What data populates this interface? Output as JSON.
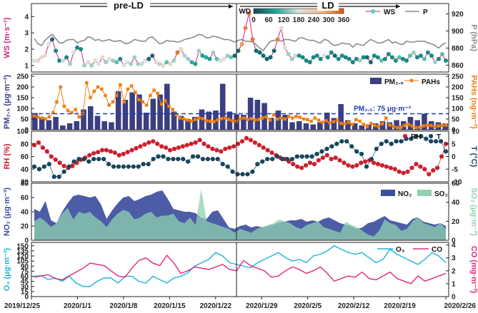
{
  "title": "",
  "phases": {
    "pre": "pre-LD",
    "ld": "LD"
  },
  "colors": {
    "ws": "#d0257a",
    "p": "#8c8c8c",
    "pm": "#3b3f80",
    "pahs": "#f07f12",
    "rh": "#cc1f2e",
    "t": "#17465e",
    "no2": "#3d4ea0",
    "so2": "#8fd1b0",
    "o3": "#1fb3dc",
    "co": "#e0287d",
    "threshold": "#1a3fb5"
  },
  "chart_data": [
    {
      "type": "line",
      "panel": "ws-p",
      "ylabel_left": "WS (m·s⁻¹)",
      "ylabel_right": "P (hPa)",
      "left_ticks": [
        "1",
        "2",
        "3",
        "4"
      ],
      "right_ticks": [
        "860",
        "880",
        "900",
        "920"
      ],
      "ylim_left": [
        0.6,
        4.8
      ],
      "ylim_right": [
        852,
        932
      ],
      "wd_colorbar": {
        "label": "WD",
        "ticks": [
          "0",
          "60",
          "120",
          "180",
          "240",
          "300",
          "360"
        ]
      },
      "series": [
        {
          "name": "WS",
          "axis": "left",
          "values": [
            1.3,
            1.3,
            1.5,
            1.6,
            2.3,
            2.6,
            1.9,
            1.3,
            1.3,
            1.5,
            1.1,
            1.8,
            2.1,
            2.0,
            1.0,
            1.2,
            1.0,
            1.3,
            1.1,
            1.5,
            1.2,
            1.4,
            1.3,
            1.2,
            1.4,
            1.0,
            1.2,
            1.1,
            1.5,
            1.1,
            1.1,
            1.3,
            1.4,
            1.6,
            1.2,
            1.1,
            1.0,
            1.2,
            1.1,
            1.3,
            1.8,
            2.0,
            1.6,
            1.4,
            1.2,
            1.1,
            1.9,
            1.6,
            1.5,
            1.4,
            1.8,
            1.4,
            1.3,
            1.4,
            1.6,
            1.5,
            1.6,
            1.9,
            2.3,
            3.3,
            4.2,
            2.6,
            1.9,
            1.8,
            1.6,
            1.4,
            1.5,
            1.9,
            2.6,
            3.3,
            2.1,
            1.7,
            1.4,
            1.6,
            1.6,
            1.5,
            1.3,
            1.2,
            1.5,
            1.6,
            1.4,
            1.6,
            1.5,
            1.8,
            1.6,
            1.4,
            1.6,
            1.5,
            1.4,
            1.2,
            1.4,
            1.3,
            1.5,
            1.5,
            1.2,
            1.6,
            1.5,
            1.3,
            1.4,
            1.7,
            1.5,
            1.3,
            1.5,
            1.4,
            1.3,
            1.6,
            1.8,
            1.5,
            1.6,
            1.4,
            1.8,
            1.6,
            1.2,
            1.4,
            1.7,
            1.3
          ]
        },
        {
          "name": "P",
          "axis": "right",
          "values": [
            891,
            885,
            883,
            889,
            893,
            896,
            891,
            886,
            886,
            889,
            890,
            890,
            886,
            888,
            889,
            893,
            892,
            889,
            890,
            888,
            889,
            890,
            888,
            888,
            889,
            886,
            885,
            887,
            890,
            889,
            888,
            888,
            892,
            893,
            889,
            885,
            886,
            889,
            888,
            888,
            887,
            888,
            890,
            891,
            892,
            894,
            896,
            895,
            892,
            892,
            894,
            893,
            892,
            890,
            890,
            889,
            887,
            889,
            890,
            888,
            888,
            887,
            884,
            880,
            877,
            883,
            888,
            889,
            889,
            888,
            890,
            890,
            889,
            888,
            892,
            892,
            890,
            889,
            889,
            887,
            886,
            890,
            889,
            885,
            883,
            884,
            886,
            885,
            885,
            881,
            885,
            884,
            883,
            887,
            890,
            888,
            886,
            886,
            888,
            890,
            886,
            887,
            885,
            884,
            888,
            887,
            887,
            888,
            888,
            888,
            886,
            885,
            883,
            880,
            884,
            886
          ]
        }
      ],
      "wd_hue_index": [
        180,
        200,
        200,
        200,
        180,
        30,
        60,
        60,
        170,
        60,
        150,
        180,
        60,
        60,
        150,
        180,
        150,
        190,
        180,
        200,
        150,
        180,
        150,
        120,
        60,
        180,
        180,
        150,
        150,
        150,
        170,
        180,
        30,
        30,
        200,
        160,
        200,
        120,
        200,
        150,
        330,
        200,
        160,
        150,
        100,
        80,
        150,
        80,
        90,
        80,
        150,
        120,
        200,
        180,
        150,
        130,
        30,
        30,
        300,
        320,
        330,
        330,
        30,
        30,
        30,
        30,
        30,
        30,
        320,
        200,
        180,
        150,
        150,
        170,
        60,
        60,
        60,
        60,
        60,
        60,
        60,
        180,
        60,
        60,
        30,
        60,
        60,
        60,
        60,
        60,
        60,
        150,
        60,
        30,
        30,
        60,
        60,
        120,
        60,
        60,
        60,
        60,
        120,
        60,
        60,
        120,
        150,
        60,
        60,
        120,
        60,
        60,
        150,
        60,
        120,
        60
      ]
    },
    {
      "type": "bar",
      "panel": "pm-pahs",
      "ylabel_left": "PM₂.₅ (μg·m⁻³)",
      "ylabel_right": "PAHs (ng·m⁻³)",
      "left_ticks": [
        "0",
        "50",
        "100",
        "150",
        "200",
        "250"
      ],
      "right_ticks": [
        "0",
        "50",
        "100",
        "150",
        "200",
        "250"
      ],
      "ylim_left": [
        0,
        260
      ],
      "ylim_right": [
        0,
        260
      ],
      "threshold": {
        "value": 75,
        "label": "PM₂.₅: 75 μg·m⁻³"
      },
      "series": [
        {
          "name": "PM₂.₅",
          "axis": "left",
          "values": [
            78,
            58,
            45,
            60,
            20,
            30,
            40,
            95,
            110,
            65,
            40,
            35,
            180,
            140,
            175,
            165,
            80,
            145,
            165,
            215,
            85,
            65,
            50,
            60,
            95,
            85,
            90,
            215,
            85,
            72,
            70,
            150,
            140,
            125,
            55,
            90,
            70,
            35,
            40,
            30,
            25,
            35,
            80,
            55,
            120,
            45,
            30,
            20,
            25,
            30,
            40,
            35,
            45,
            40,
            60,
            45,
            75,
            40,
            35,
            30
          ]
        },
        {
          "name": "PAHs",
          "axis": "right",
          "values": [
            65,
            60,
            55,
            50,
            60,
            80,
            130,
            200,
            110,
            90,
            80,
            95,
            60,
            75,
            220,
            150,
            180,
            200,
            190,
            160,
            115,
            130,
            160,
            210,
            130,
            190,
            205,
            175,
            140,
            130,
            115,
            160,
            185,
            170,
            120,
            135,
            110,
            95,
            70,
            55,
            50,
            45,
            40,
            48,
            55,
            52,
            42,
            40,
            38,
            45,
            52,
            55,
            48,
            42,
            40,
            50,
            55,
            48,
            52,
            45,
            48,
            55,
            60,
            45,
            70,
            50,
            55,
            50,
            62,
            55,
            62,
            58,
            50,
            48,
            40,
            55,
            45,
            35,
            42,
            32,
            38,
            45,
            30,
            28,
            35,
            25,
            48,
            40,
            25,
            15,
            30,
            20,
            15,
            28,
            55,
            22,
            16,
            10,
            12,
            20,
            25,
            18,
            10,
            12,
            18,
            22,
            20,
            15,
            18,
            20,
            22
          ]
        }
      ]
    },
    {
      "type": "scatter",
      "panel": "rh-t",
      "ylabel_left": "RH (%)",
      "ylabel_right": "T (°C)",
      "left_ticks": [
        "20",
        "40",
        "60",
        "80",
        "100"
      ],
      "right_ticks": [
        "-10",
        "-5",
        "0",
        "5",
        "10"
      ],
      "ylim_left": [
        20,
        100
      ],
      "ylim_right": [
        -10,
        10
      ],
      "series": [
        {
          "name": "RH",
          "axis": "left",
          "values": [
            78,
            82,
            74,
            68,
            60,
            55,
            50,
            45,
            42,
            45,
            50,
            55,
            58,
            62,
            65,
            67,
            70,
            70,
            68,
            66,
            62,
            64,
            67,
            70,
            73,
            76,
            79,
            82,
            84,
            80,
            76,
            74,
            70,
            72,
            74,
            76,
            78,
            80,
            82,
            86,
            80,
            76,
            72,
            70,
            68,
            72,
            74,
            76,
            80,
            84,
            89,
            86,
            82,
            78,
            74,
            70,
            66,
            62,
            58,
            56,
            52,
            48,
            44,
            42,
            46,
            50,
            48,
            54,
            58,
            62,
            56,
            58,
            54,
            50,
            46,
            44,
            46,
            50,
            52,
            54,
            50,
            48,
            46,
            44,
            42,
            40,
            36,
            34,
            36,
            42,
            48,
            44,
            40,
            32,
            38,
            42,
            60,
            80
          ]
        },
        {
          "name": "T",
          "axis": "right",
          "values": [
            -4,
            -5,
            -4,
            -3,
            -8,
            -8,
            -6,
            -4,
            -2,
            -1,
            -1,
            -2,
            -1,
            -1,
            -1,
            -3,
            -4,
            -4,
            -4,
            -4,
            -4,
            -4,
            -3,
            -3,
            -1,
            0,
            0,
            -1,
            -1,
            -1,
            -1,
            -2,
            0,
            0,
            -1,
            -1,
            -1,
            -1,
            -3,
            -4,
            -6,
            -7,
            -7,
            -7,
            -6,
            -3,
            -2,
            -1,
            -1,
            0,
            -1,
            -1,
            -1,
            0,
            0,
            0,
            0,
            1,
            2,
            3,
            4,
            5,
            6,
            6,
            4,
            2,
            1,
            -4,
            -1,
            3,
            5,
            6,
            5,
            6,
            6,
            7,
            7,
            8,
            8,
            7,
            6,
            6,
            6,
            2
          ]
        }
      ]
    },
    {
      "type": "area",
      "panel": "no2-so2",
      "ylabel_left": "NO₂ (μg·m⁻³)",
      "ylabel_right": "SO₂ (μg·m⁻³)",
      "left_ticks": [
        "0",
        "20",
        "40",
        "60",
        "80"
      ],
      "right_ticks": [
        "0",
        "20",
        "40",
        "60"
      ],
      "ylim_left": [
        0,
        80
      ],
      "ylim_right": [
        0,
        60
      ],
      "series": [
        {
          "name": "NO₂",
          "axis": "left",
          "values": [
            44,
            40,
            55,
            28,
            24,
            40,
            52,
            62,
            64,
            62,
            60,
            62,
            50,
            30,
            42,
            52,
            60,
            62,
            55,
            58,
            62,
            64,
            68,
            70,
            58,
            44,
            42,
            40,
            40,
            38,
            32,
            30,
            40,
            42,
            30,
            18,
            16,
            20,
            22,
            18,
            20,
            18,
            20,
            22,
            25,
            26,
            28,
            28,
            30,
            26,
            28,
            26,
            30,
            32,
            28,
            24,
            22,
            20,
            16,
            18,
            24,
            26,
            30,
            34,
            28,
            26,
            24,
            22,
            30,
            32,
            26,
            24,
            22,
            24,
            20
          ]
        },
        {
          "name": "SO₂",
          "axis": "right",
          "values": [
            20,
            24,
            20,
            14,
            18,
            28,
            34,
            22,
            30,
            28,
            30,
            24,
            20,
            14,
            22,
            28,
            32,
            30,
            22,
            24,
            28,
            30,
            24,
            26,
            26,
            28,
            20,
            18,
            24,
            16,
            54,
            20,
            18,
            16,
            14,
            12,
            8,
            12,
            10,
            8,
            12,
            14,
            16,
            18,
            22,
            20,
            18,
            14,
            12,
            16,
            18,
            20,
            14,
            12,
            10,
            8,
            20,
            16,
            14,
            10,
            6,
            4,
            10,
            22,
            18,
            16,
            10,
            12,
            20,
            24,
            18,
            16,
            14,
            18,
            12
          ]
        }
      ]
    },
    {
      "type": "line",
      "panel": "o3-co",
      "ylabel_left": "O₃ (μg·m⁻³)",
      "ylabel_right": "CO (mg·m⁻³)",
      "left_ticks": [
        "0",
        "15",
        "30",
        "45",
        "60",
        "75",
        "90",
        "105",
        "120",
        "135",
        "150"
      ],
      "right_ticks": [
        "0",
        "1",
        "2",
        "3",
        "4"
      ],
      "ylim_left": [
        0,
        160
      ],
      "ylim_right": [
        0,
        4.2
      ],
      "x_ticks": [
        "2019/12/25",
        "2020/1/1",
        "2020/1/8",
        "2020/1/15",
        "2020/1/22",
        "2020/1/29",
        "2020/2/5",
        "2020/2/12",
        "2020/2/19",
        "2020/2/26"
      ],
      "series": [
        {
          "name": "O₃",
          "axis": "left",
          "values": [
            60,
            62,
            50,
            55,
            45,
            60,
            40,
            30,
            30,
            45,
            55,
            55,
            40,
            60,
            60,
            45,
            40,
            60,
            50,
            40,
            55,
            60,
            70,
            90,
            100,
            110,
            130,
            120,
            100,
            95,
            90,
            85,
            100,
            110,
            120,
            130,
            115,
            105,
            110,
            100,
            120,
            125,
            135,
            150,
            140,
            130,
            125,
            130,
            115,
            100,
            110,
            140,
            125,
            115,
            105,
            95,
            110,
            130,
            120,
            100
          ]
        },
        {
          "name": "CO",
          "axis": "right",
          "values": [
            1.5,
            1.6,
            1.7,
            1.4,
            1.3,
            1.6,
            1.9,
            2.2,
            2.6,
            2.5,
            2.4,
            2.0,
            1.6,
            1.5,
            2.2,
            2.8,
            3.0,
            2.6,
            2.4,
            3.2,
            2.6,
            1.8,
            2.0,
            2.3,
            2.2,
            2.1,
            2.3,
            2.5,
            2.1,
            2.0,
            2.8,
            2.4,
            2.2,
            2.0,
            1.5,
            1.6,
            2.0,
            2.3,
            2.1,
            1.8,
            2.0,
            2.3,
            1.8,
            1.2,
            1.4,
            1.6,
            1.5,
            1.9,
            1.4,
            1.3,
            1.6,
            1.9,
            1.4,
            1.2,
            1.0,
            1.6,
            1.2,
            1.4,
            1.6,
            1.8
          ]
        }
      ]
    }
  ]
}
